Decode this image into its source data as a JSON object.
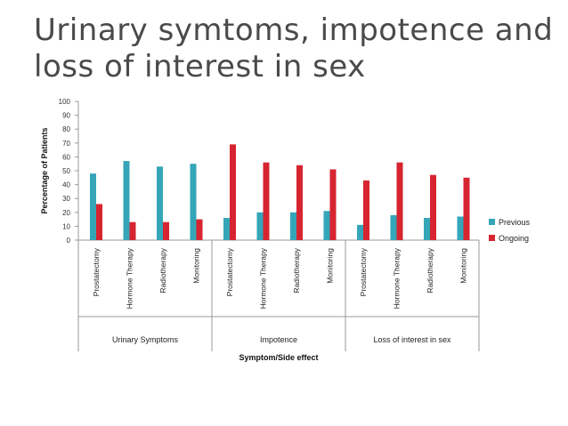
{
  "slide": {
    "title_line1": "Urinary symtoms, impotence and",
    "title_line2": "loss of interest in sex"
  },
  "colors": {
    "previous": "#35a5b8",
    "ongoing": "#d62530",
    "axis": "#999999"
  },
  "chart_data": {
    "type": "bar",
    "title": "",
    "xlabel": "Symptom/Side effect",
    "ylabel": "Percentage of Patients",
    "ylim": [
      0,
      100
    ],
    "yticks": [
      0,
      10,
      20,
      30,
      40,
      50,
      60,
      70,
      80,
      90,
      100
    ],
    "groups": [
      {
        "name": "Urinary Symptoms",
        "categories": [
          "Prostatectomy",
          "Hormone Therapy",
          "Radiotherapy",
          "Monitoring"
        ]
      },
      {
        "name": "Impotence",
        "categories": [
          "Prostatectomy",
          "Hormone Therapy",
          "Radiotherapy",
          "Monitoring"
        ]
      },
      {
        "name": "Loss of interest in sex",
        "categories": [
          "Prostatectomy",
          "Hormone Therapy",
          "Radiotherapy",
          "Monitoring"
        ]
      }
    ],
    "series": [
      {
        "name": "Previous",
        "values": [
          48,
          57,
          53,
          55,
          16,
          20,
          20,
          21,
          11,
          18,
          16,
          17
        ]
      },
      {
        "name": "Ongoing",
        "values": [
          26,
          13,
          13,
          15,
          69,
          56,
          54,
          51,
          43,
          56,
          47,
          45
        ]
      }
    ],
    "legend_position": "right",
    "grid": false
  }
}
